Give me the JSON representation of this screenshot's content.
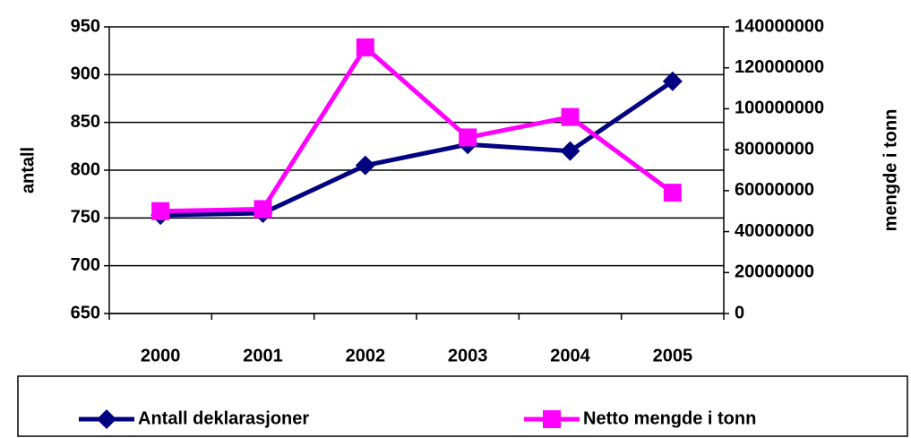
{
  "chart_data": {
    "type": "line",
    "categories": [
      "2000",
      "2001",
      "2002",
      "2003",
      "2004",
      "2005"
    ],
    "series": [
      {
        "name": "Antall deklarasjoner",
        "color": "#000080",
        "values": [
          753,
          755,
          805,
          827,
          820,
          893
        ]
      },
      {
        "name": "Netto mengde i tonn",
        "color": "#ff00ff",
        "axis": "y2",
        "values": [
          50000000,
          51000000,
          130000000,
          86000000,
          96000000,
          59000000
        ]
      }
    ],
    "ylabel": "antall",
    "y2label": "mengde i tonn",
    "ylim": [
      650,
      950
    ],
    "yticks": [
      650,
      700,
      750,
      800,
      850,
      900,
      950
    ],
    "y2lim": [
      0,
      140000000
    ],
    "y2ticks": [
      0,
      20000000,
      40000000,
      60000000,
      80000000,
      100000000,
      120000000,
      140000000
    ],
    "grid": true,
    "legend": "bottom"
  }
}
